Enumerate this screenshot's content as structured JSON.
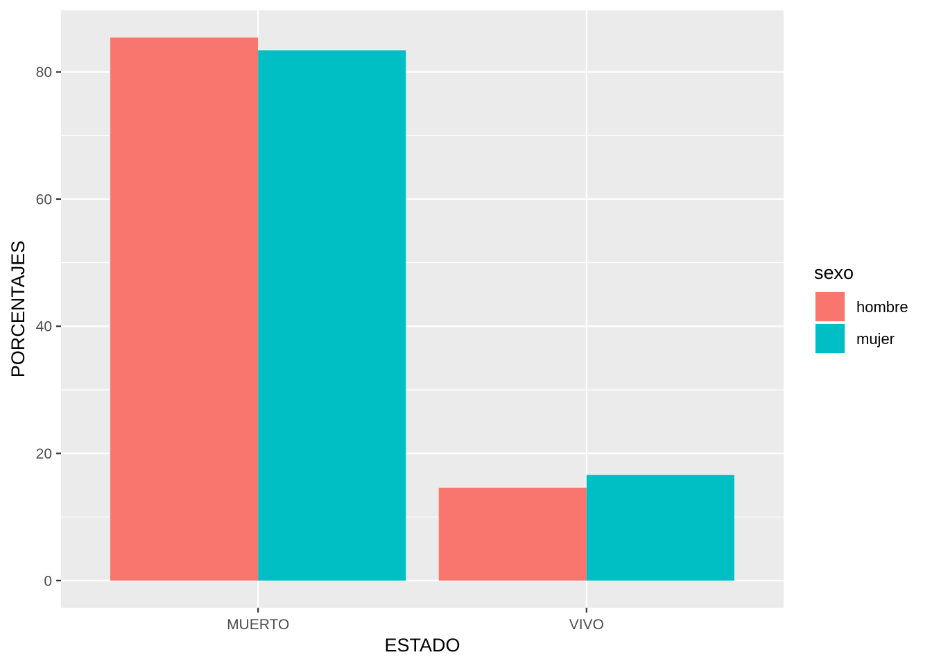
{
  "chart_data": {
    "type": "bar",
    "categories": [
      "MUERTO",
      "VIVO"
    ],
    "series": [
      {
        "name": "hombre",
        "values": [
          85.4,
          14.6
        ]
      },
      {
        "name": "mujer",
        "values": [
          83.4,
          16.6
        ]
      }
    ],
    "title": "",
    "xlabel": "ESTADO",
    "ylabel": "PORCENTAJES",
    "ylim": [
      -4.27,
      89.67
    ],
    "yticks": [
      0,
      20,
      40,
      60,
      80
    ],
    "ytick_labels": [
      "0",
      "20",
      "40",
      "60",
      "80"
    ],
    "grid": true,
    "legend": {
      "title": "sexo",
      "position": "right"
    },
    "colors": {
      "hombre": "#F8766D",
      "mujer": "#00BFC4",
      "panel": "#EBEBEB",
      "grid": "#FFFFFF"
    }
  }
}
